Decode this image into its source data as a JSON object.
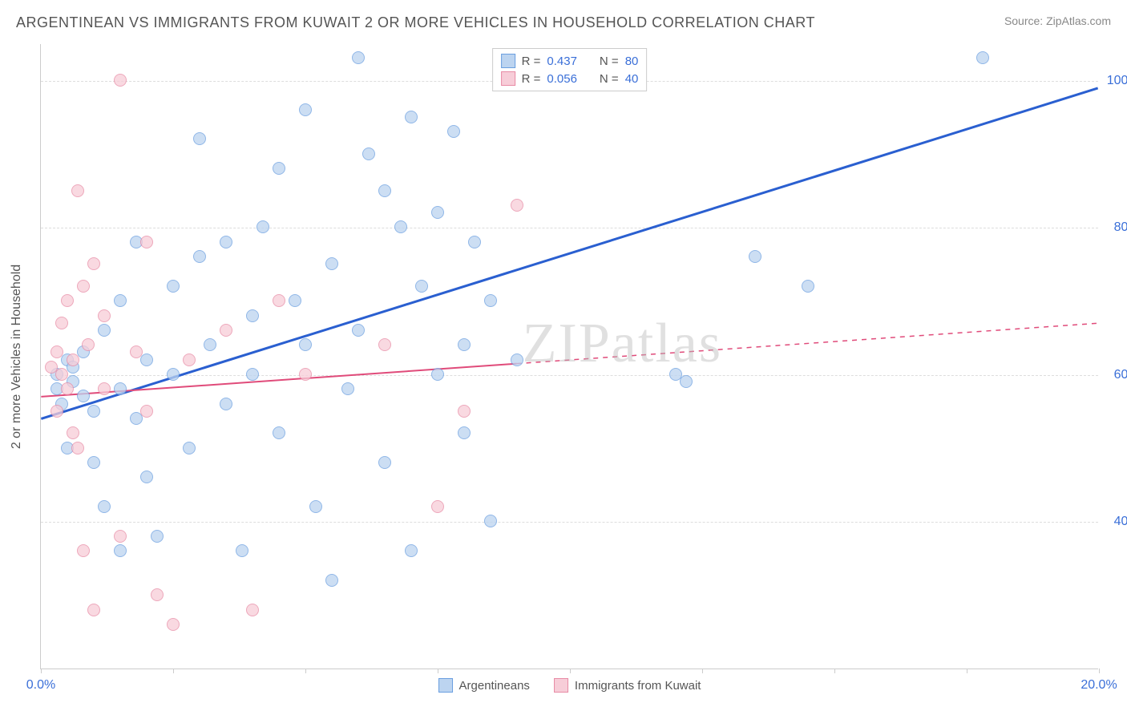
{
  "header": {
    "title": "ARGENTINEAN VS IMMIGRANTS FROM KUWAIT 2 OR MORE VEHICLES IN HOUSEHOLD CORRELATION CHART",
    "source": "Source: ZipAtlas.com"
  },
  "chart": {
    "type": "scatter",
    "y_axis_label": "2 or more Vehicles in Household",
    "watermark": "ZIPatlas",
    "background_color": "#ffffff",
    "grid_color": "#dddddd",
    "axis_color": "#cccccc",
    "xlim": [
      0,
      20
    ],
    "ylim": [
      20,
      105
    ],
    "x_ticks": [
      0,
      2.5,
      5,
      7.5,
      10,
      12.5,
      15,
      17.5,
      20
    ],
    "x_tick_labels": {
      "0": "0.0%",
      "20": "20.0%"
    },
    "y_gridlines": [
      40,
      60,
      80,
      100
    ],
    "y_tick_labels": {
      "40": "40.0%",
      "60": "60.0%",
      "80": "80.0%",
      "100": "100.0%"
    },
    "tick_label_color": "#3a6fd8",
    "tick_label_fontsize": 16,
    "marker_radius": 8,
    "series": [
      {
        "name": "Argentineans",
        "fill": "#bcd4f0",
        "stroke": "#6b9fe0",
        "fill_opacity": 0.75,
        "trend": {
          "x1": 0,
          "y1": 54,
          "x2": 20,
          "y2": 99,
          "color": "#2a5fd0",
          "width": 3,
          "dash": "none",
          "solid_until_x": 20
        },
        "R": "0.437",
        "N": "80",
        "points": [
          [
            0.3,
            58
          ],
          [
            0.3,
            60
          ],
          [
            0.4,
            56
          ],
          [
            0.5,
            62
          ],
          [
            0.5,
            50
          ],
          [
            0.6,
            59
          ],
          [
            0.6,
            61
          ],
          [
            0.8,
            57
          ],
          [
            0.8,
            63
          ],
          [
            1.0,
            55
          ],
          [
            1.0,
            48
          ],
          [
            1.2,
            66
          ],
          [
            1.2,
            42
          ],
          [
            1.5,
            70
          ],
          [
            1.5,
            36
          ],
          [
            1.5,
            58
          ],
          [
            1.8,
            54
          ],
          [
            1.8,
            78
          ],
          [
            2.0,
            62
          ],
          [
            2.0,
            46
          ],
          [
            2.2,
            38
          ],
          [
            2.5,
            60
          ],
          [
            2.5,
            72
          ],
          [
            2.8,
            50
          ],
          [
            3.0,
            76
          ],
          [
            3.0,
            92
          ],
          [
            3.2,
            64
          ],
          [
            3.5,
            56
          ],
          [
            3.5,
            78
          ],
          [
            3.8,
            36
          ],
          [
            4.0,
            68
          ],
          [
            4.0,
            60
          ],
          [
            4.2,
            80
          ],
          [
            4.5,
            88
          ],
          [
            4.5,
            52
          ],
          [
            4.8,
            70
          ],
          [
            5.0,
            64
          ],
          [
            5.0,
            96
          ],
          [
            5.2,
            42
          ],
          [
            5.5,
            32
          ],
          [
            5.5,
            75
          ],
          [
            5.8,
            58
          ],
          [
            6.0,
            103
          ],
          [
            6.0,
            66
          ],
          [
            6.2,
            90
          ],
          [
            6.5,
            85
          ],
          [
            6.5,
            48
          ],
          [
            6.8,
            80
          ],
          [
            7.0,
            95
          ],
          [
            7.0,
            36
          ],
          [
            7.2,
            72
          ],
          [
            7.5,
            60
          ],
          [
            7.5,
            82
          ],
          [
            7.8,
            93
          ],
          [
            8.0,
            52
          ],
          [
            8.0,
            64
          ],
          [
            8.2,
            78
          ],
          [
            8.5,
            70
          ],
          [
            8.5,
            40
          ],
          [
            9.0,
            62
          ],
          [
            12.0,
            60
          ],
          [
            12.2,
            59
          ],
          [
            13.5,
            76
          ],
          [
            14.5,
            72
          ],
          [
            17.8,
            103
          ]
        ]
      },
      {
        "name": "Immigrants from Kuwait",
        "fill": "#f7cdd8",
        "stroke": "#e88ba5",
        "fill_opacity": 0.75,
        "trend": {
          "x1": 0,
          "y1": 57,
          "x2": 20,
          "y2": 67,
          "color": "#e04b7a",
          "width": 2,
          "dash": "6,6",
          "solid_until_x": 9
        },
        "R": "0.056",
        "N": "40",
        "points": [
          [
            0.2,
            61
          ],
          [
            0.3,
            63
          ],
          [
            0.3,
            55
          ],
          [
            0.4,
            60
          ],
          [
            0.4,
            67
          ],
          [
            0.5,
            58
          ],
          [
            0.5,
            70
          ],
          [
            0.6,
            52
          ],
          [
            0.6,
            62
          ],
          [
            0.7,
            85
          ],
          [
            0.7,
            50
          ],
          [
            0.8,
            72
          ],
          [
            0.8,
            36
          ],
          [
            0.9,
            64
          ],
          [
            1.0,
            75
          ],
          [
            1.0,
            28
          ],
          [
            1.2,
            58
          ],
          [
            1.2,
            68
          ],
          [
            1.5,
            100
          ],
          [
            1.5,
            38
          ],
          [
            1.8,
            63
          ],
          [
            2.0,
            55
          ],
          [
            2.0,
            78
          ],
          [
            2.2,
            30
          ],
          [
            2.5,
            26
          ],
          [
            2.8,
            62
          ],
          [
            3.5,
            66
          ],
          [
            4.0,
            28
          ],
          [
            4.5,
            70
          ],
          [
            5.0,
            60
          ],
          [
            6.5,
            64
          ],
          [
            7.5,
            42
          ],
          [
            8.0,
            55
          ],
          [
            9.0,
            83
          ]
        ]
      }
    ],
    "legend_top": {
      "border_color": "#cccccc",
      "rows": [
        {
          "swatch_fill": "#bcd4f0",
          "swatch_stroke": "#6b9fe0",
          "r_label": "R =",
          "r_val": "0.437",
          "n_label": "N =",
          "n_val": "80"
        },
        {
          "swatch_fill": "#f7cdd8",
          "swatch_stroke": "#e88ba5",
          "r_label": "R =",
          "r_val": "0.056",
          "n_label": "N =",
          "n_val": "40"
        }
      ]
    },
    "legend_bottom": [
      {
        "swatch_fill": "#bcd4f0",
        "swatch_stroke": "#6b9fe0",
        "label": "Argentineans"
      },
      {
        "swatch_fill": "#f7cdd8",
        "swatch_stroke": "#e88ba5",
        "label": "Immigrants from Kuwait"
      }
    ]
  }
}
